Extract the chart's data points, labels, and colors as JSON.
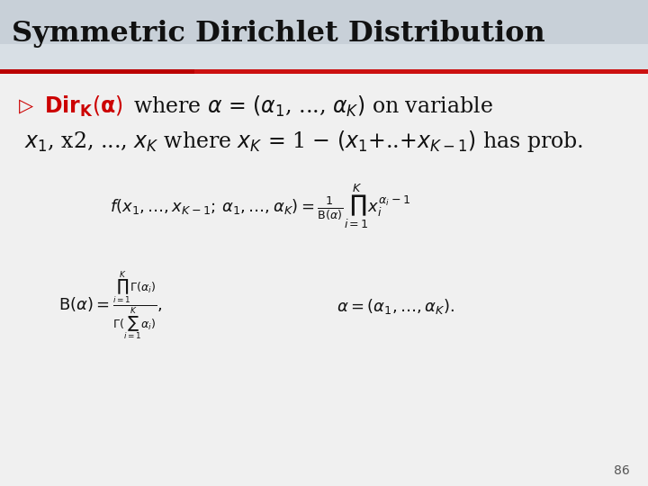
{
  "title": "Symmetric Dirichlet Distribution",
  "title_bg_color": "#c8d0d8",
  "content_bg_color": "#f0f0f0",
  "red_line_color": "#cc0000",
  "text_color": "#111111",
  "bullet_color": "#cc0000",
  "page_number": "86"
}
